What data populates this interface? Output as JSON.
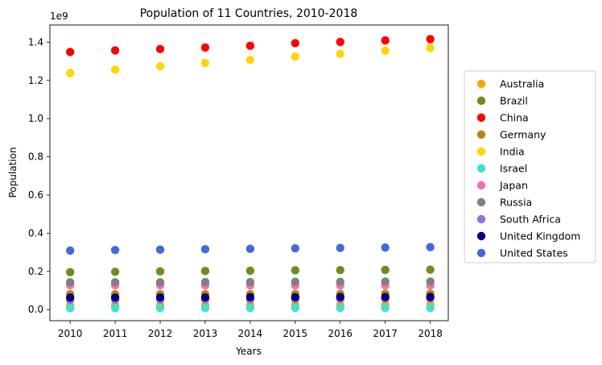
{
  "chart_data": {
    "type": "scatter",
    "title": "Population of 11 Countries, 2010-2018",
    "xlabel": "Years",
    "ylabel": "Population",
    "y_offset_label": "1e9",
    "x": [
      2010,
      2011,
      2012,
      2013,
      2014,
      2015,
      2016,
      2017,
      2018
    ],
    "xlim": [
      2009.55,
      2018.4
    ],
    "ylim": [
      -0.058,
      1.49
    ],
    "y_ticks": [
      0.0,
      0.2,
      0.4,
      0.6,
      0.8,
      1.0,
      1.2,
      1.4
    ],
    "y_tick_labels": [
      "0.0",
      "0.2",
      "0.4",
      "0.6",
      "0.8",
      "1.0",
      "1.2",
      "1.4"
    ],
    "x_tick_labels": [
      "2010",
      "2011",
      "2012",
      "2013",
      "2014",
      "2015",
      "2016",
      "2017",
      "2018"
    ],
    "grid": false,
    "legend_position": "right, outside plot",
    "series": [
      {
        "name": "Australia",
        "color": "#ffa500",
        "values": [
          0.022,
          0.0225,
          0.0228,
          0.0232,
          0.0235,
          0.0238,
          0.0242,
          0.0246,
          0.025
        ]
      },
      {
        "name": "Brazil",
        "color": "#6b8e23",
        "values": [
          0.196,
          0.198,
          0.2,
          0.202,
          0.204,
          0.206,
          0.207,
          0.208,
          0.209
        ]
      },
      {
        "name": "China",
        "color": "#ff0000",
        "values": [
          1.349,
          1.357,
          1.364,
          1.372,
          1.381,
          1.395,
          1.401,
          1.409,
          1.416
        ]
      },
      {
        "name": "Germany",
        "color": "#b8860b",
        "values": [
          0.081,
          0.081,
          0.081,
          0.081,
          0.081,
          0.082,
          0.082,
          0.083,
          0.083
        ]
      },
      {
        "name": "India",
        "color": "#ffd700",
        "values": [
          1.238,
          1.256,
          1.274,
          1.291,
          1.308,
          1.324,
          1.339,
          1.355,
          1.369
        ]
      },
      {
        "name": "Israel",
        "color": "#40e0d0",
        "values": [
          0.0076,
          0.0078,
          0.0079,
          0.0081,
          0.0082,
          0.0084,
          0.0085,
          0.0087,
          0.0088
        ]
      },
      {
        "name": "Japan",
        "color": "#ff69b4",
        "values": [
          0.128,
          0.128,
          0.128,
          0.127,
          0.127,
          0.127,
          0.127,
          0.127,
          0.126
        ]
      },
      {
        "name": "Russia",
        "color": "#808080",
        "values": [
          0.143,
          0.143,
          0.143,
          0.144,
          0.144,
          0.146,
          0.146,
          0.147,
          0.147
        ]
      },
      {
        "name": "South Africa",
        "color": "#9370db",
        "values": [
          0.051,
          0.052,
          0.053,
          0.053,
          0.054,
          0.055,
          0.056,
          0.057,
          0.058
        ]
      },
      {
        "name": "United Kingdom",
        "color": "#000080",
        "values": [
          0.063,
          0.063,
          0.064,
          0.064,
          0.065,
          0.065,
          0.066,
          0.066,
          0.066
        ]
      },
      {
        "name": "United States",
        "color": "#4169e1",
        "values": [
          0.309,
          0.312,
          0.314,
          0.316,
          0.318,
          0.321,
          0.323,
          0.325,
          0.327
        ]
      }
    ]
  }
}
